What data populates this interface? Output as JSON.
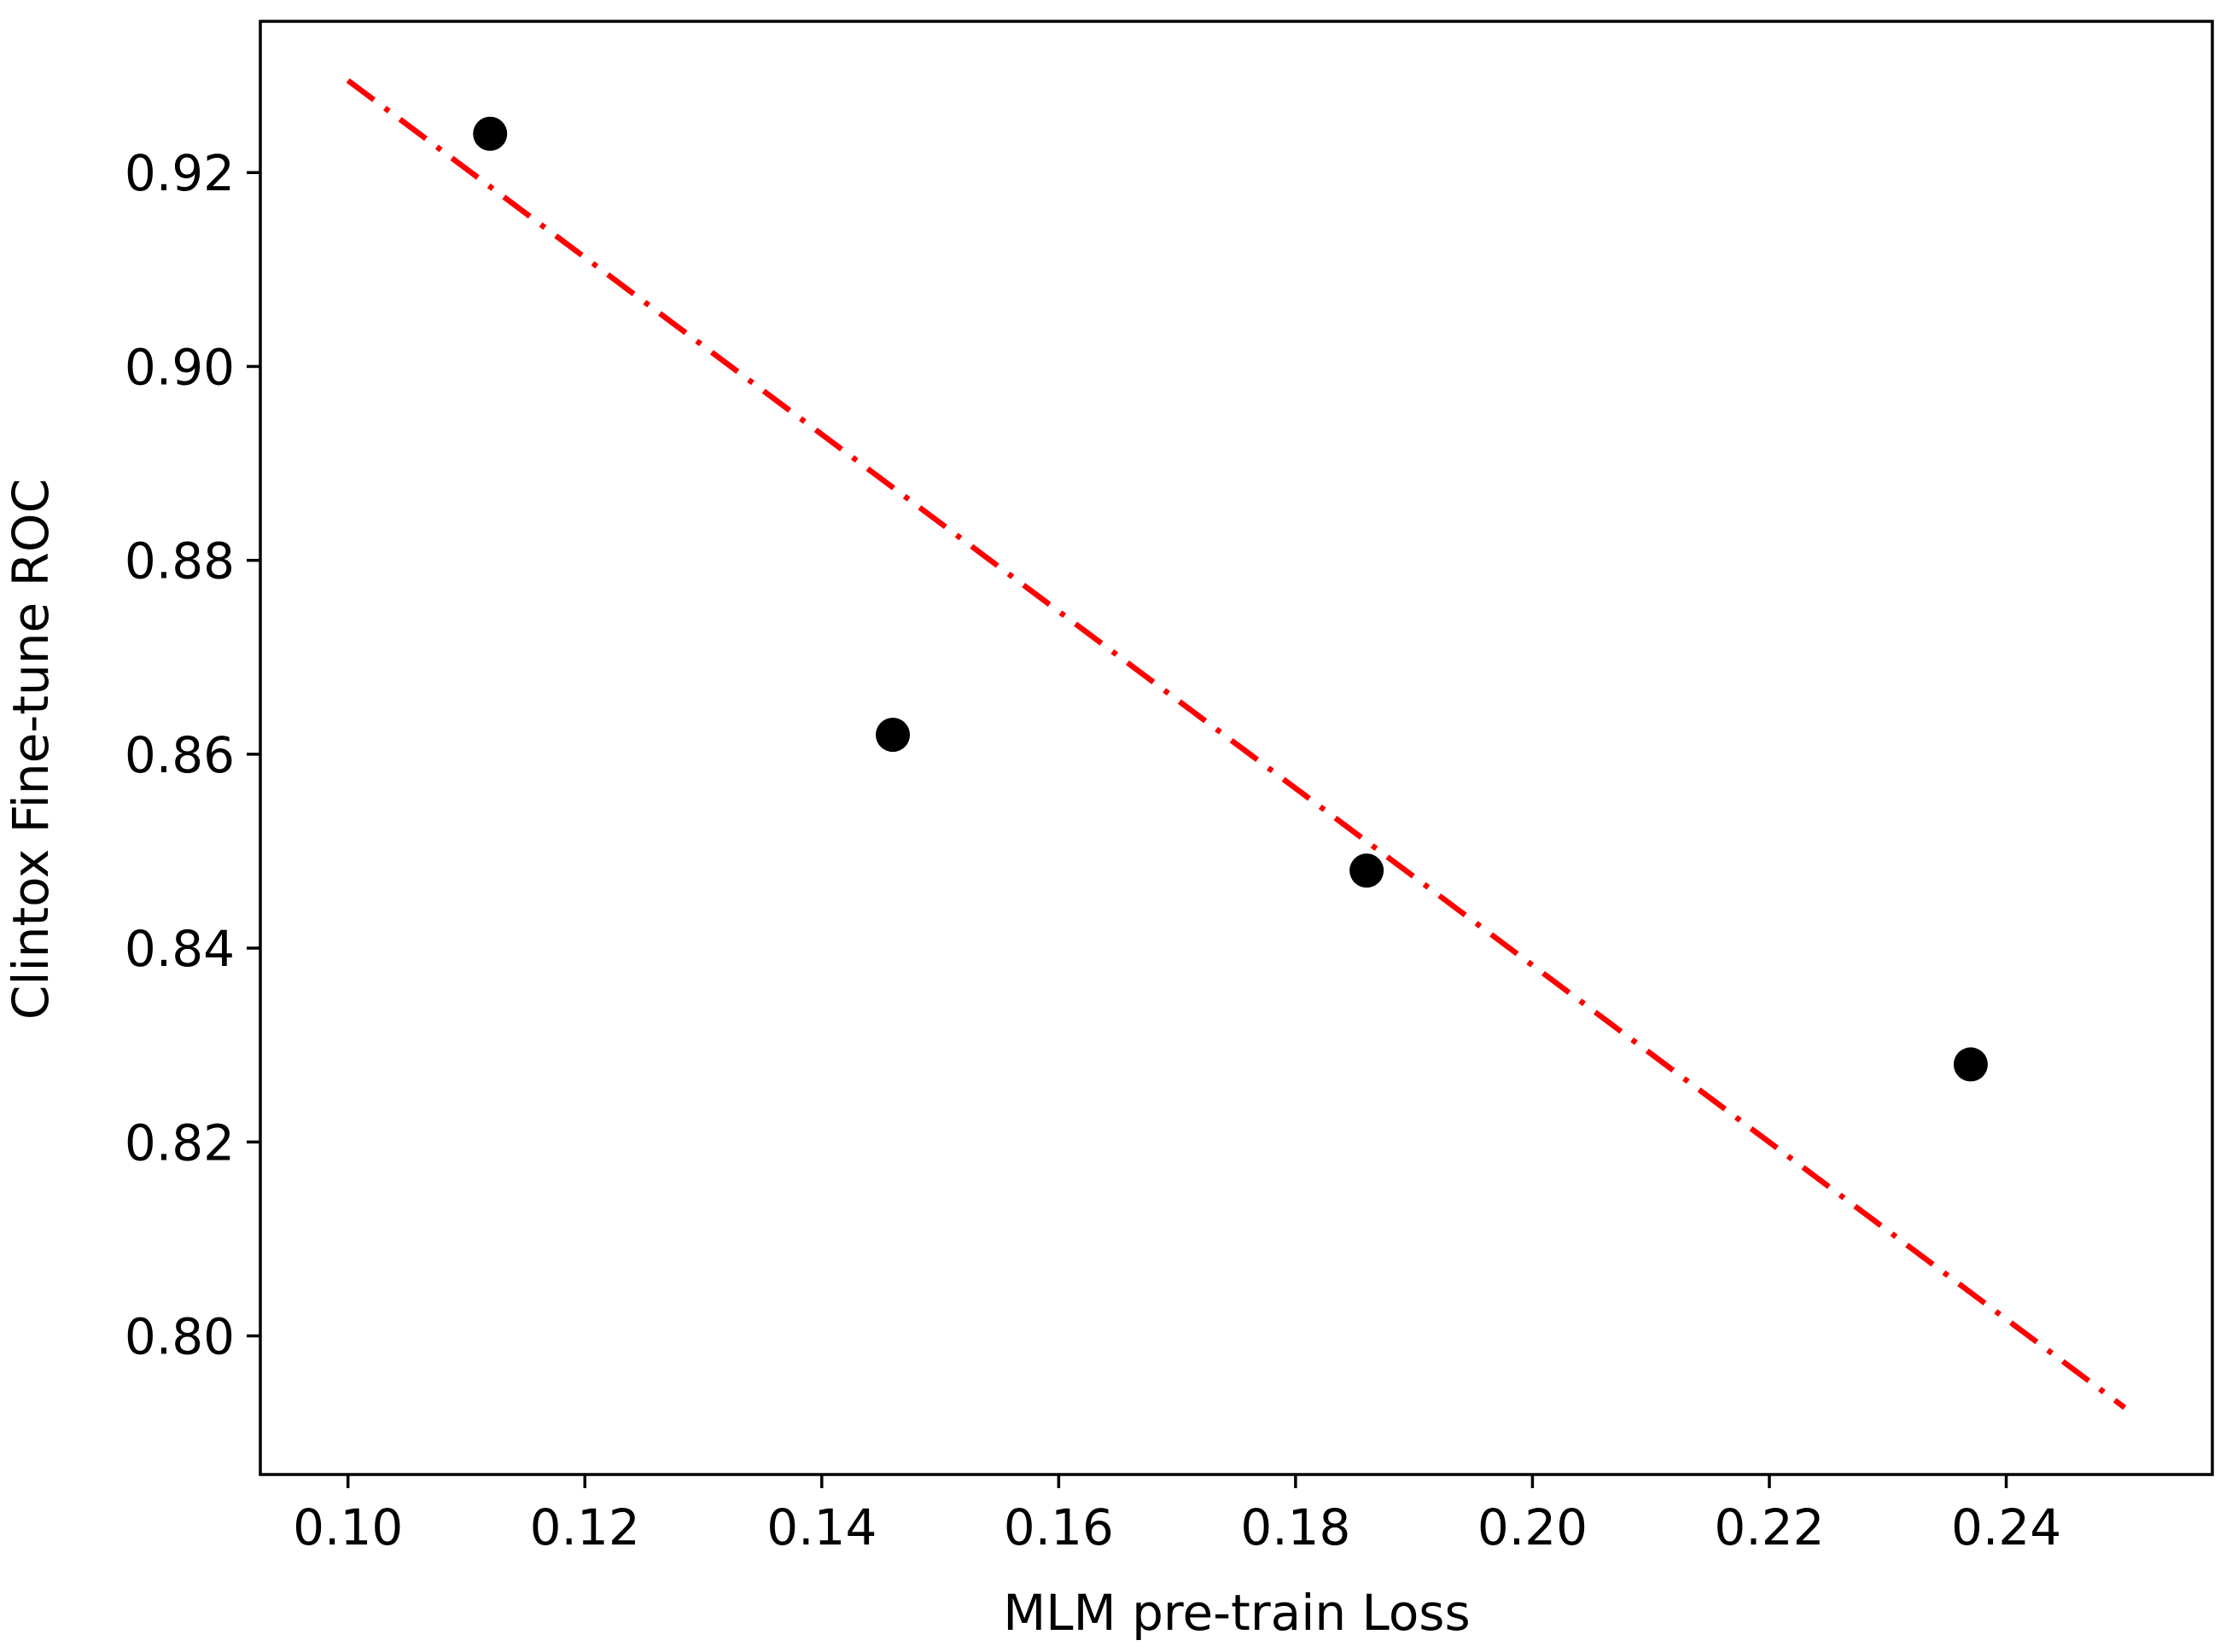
{
  "chart_data": {
    "type": "scatter",
    "title": "",
    "xlabel": "MLM pre-train Loss",
    "ylabel": "Clintox Fine-tune ROC",
    "xlim": [
      0.0926,
      0.2574
    ],
    "ylim": [
      0.7857,
      0.9356
    ],
    "grid": false,
    "legend": "none",
    "x_ticks": [
      0.1,
      0.12,
      0.14,
      0.16,
      0.18,
      0.2,
      0.22,
      0.24
    ],
    "x_tick_labels": [
      "0.10",
      "0.12",
      "0.14",
      "0.16",
      "0.18",
      "0.20",
      "0.22",
      "0.24"
    ],
    "y_ticks": [
      0.8,
      0.82,
      0.84,
      0.86,
      0.88,
      0.9,
      0.92
    ],
    "y_tick_labels": [
      "0.80",
      "0.82",
      "0.84",
      "0.86",
      "0.88",
      "0.90",
      "0.92"
    ],
    "points": {
      "x": [
        0.112,
        0.146,
        0.186,
        0.237
      ],
      "y": [
        0.924,
        0.862,
        0.848,
        0.828
      ],
      "color": "#000000"
    },
    "fit_line": {
      "x": [
        0.1,
        0.25
      ],
      "y": [
        0.9295,
        0.7926
      ],
      "color": "#ff0000",
      "style": "dash-dot"
    }
  }
}
